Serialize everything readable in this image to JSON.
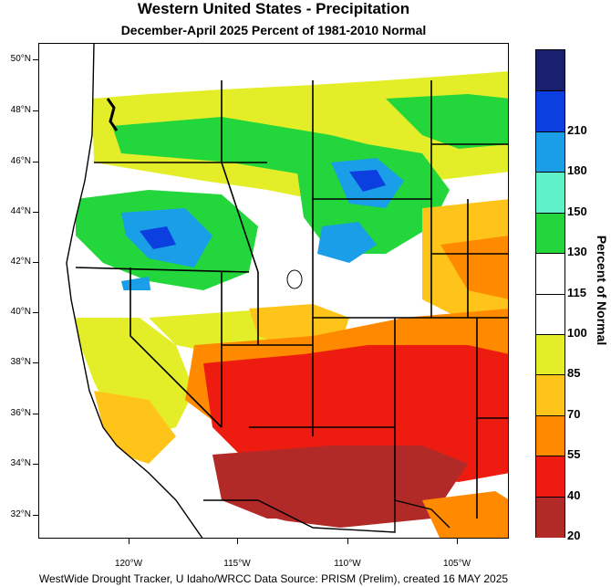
{
  "title": "Western United States - Precipitation",
  "subtitle": "December-April 2025  Percent of 1981-2010 Normal",
  "lat_labels": [
    "50°N",
    "48°N",
    "46°N",
    "44°N",
    "42°N",
    "40°N",
    "38°N",
    "36°N",
    "34°N",
    "32°N"
  ],
  "lon_labels": [
    "120°W",
    "115°W",
    "110°W",
    "105°W"
  ],
  "legend": {
    "title": "Percent of Normal",
    "bins": [
      {
        "label": "",
        "color": "#1a1f6e"
      },
      {
        "label": "210",
        "color": "#0b3fe0"
      },
      {
        "label": "180",
        "color": "#1a9ee8"
      },
      {
        "label": "150",
        "color": "#5ff2c8"
      },
      {
        "label": "130",
        "color": "#22d63c"
      },
      {
        "label": "115",
        "color": "#ffffff"
      },
      {
        "label": "100",
        "color": "#ffffff"
      },
      {
        "label": "85",
        "color": "#e4ee28"
      },
      {
        "label": "70",
        "color": "#ffc41a"
      },
      {
        "label": "55",
        "color": "#ff8a00"
      },
      {
        "label": "40",
        "color": "#ee1c10"
      },
      {
        "label": "20",
        "color": "#b22a28"
      }
    ]
  },
  "footer": "WestWide Drought Tracker, U Idaho/WRCC Data Source: PRISM (Prelim), created 16 MAY 2025",
  "colors": {
    "ocean": "#ffffff",
    "border": "#000000"
  }
}
